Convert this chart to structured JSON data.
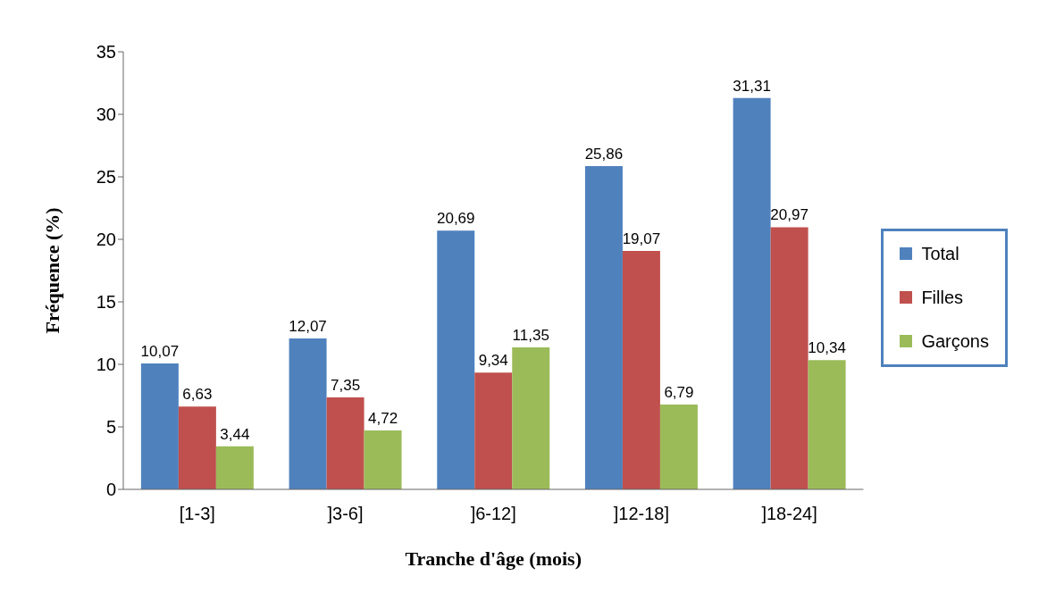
{
  "chart_data": {
    "type": "bar",
    "xlabel": "Tranche d'âge (mois)",
    "ylabel": "Fréquence (%)",
    "categories": [
      "[1-3]",
      "]3-6]",
      "]6-12]",
      "]12-18]",
      "]18-24]"
    ],
    "series": [
      {
        "name": "Total",
        "color": "#4f81bd",
        "values": [
          10.07,
          12.07,
          20.69,
          25.86,
          31.31
        ],
        "value_labels": [
          "10,07",
          "12,07",
          "20,69",
          "25,86",
          "31,31"
        ]
      },
      {
        "name": "Filles",
        "color": "#c0504d",
        "values": [
          6.63,
          7.35,
          9.34,
          19.07,
          20.97
        ],
        "value_labels": [
          "6,63",
          "7,35",
          "9,34",
          "19,07",
          "20,97"
        ]
      },
      {
        "name": "Garçons",
        "color": "#9bbb59",
        "values": [
          3.44,
          4.72,
          11.35,
          6.79,
          10.34
        ],
        "value_labels": [
          "3,44",
          "4,72",
          "11,35",
          "6,79",
          "10,34"
        ]
      }
    ],
    "ylim": [
      0,
      35
    ],
    "yticks": [
      0,
      5,
      10,
      15,
      20,
      25,
      30,
      35
    ],
    "legend": "right"
  }
}
